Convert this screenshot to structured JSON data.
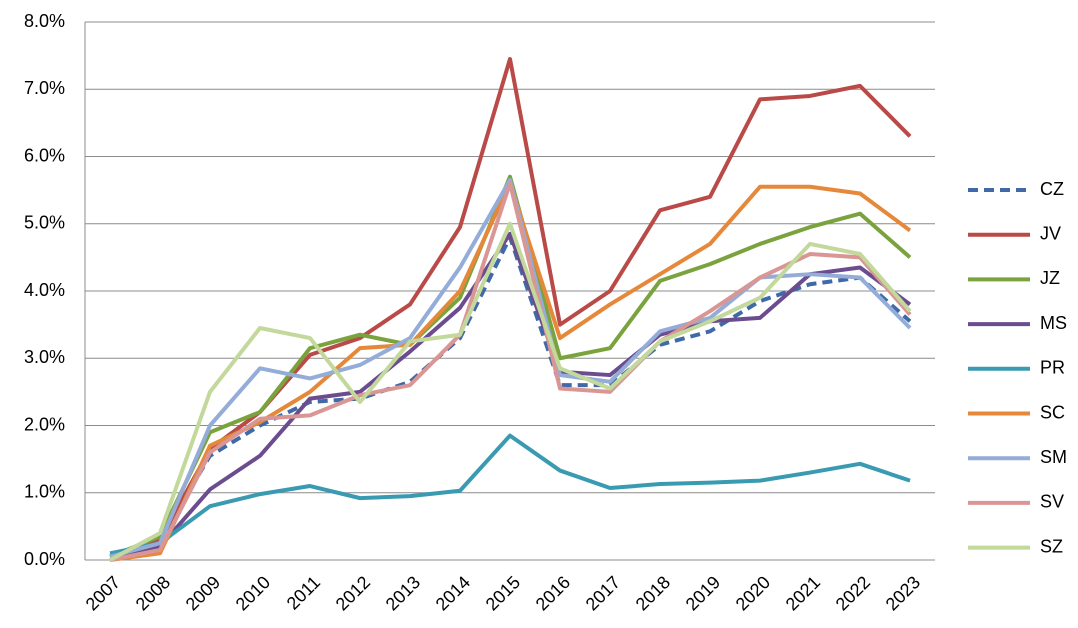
{
  "chart_data": {
    "type": "line",
    "categories": [
      "2007",
      "2008",
      "2009",
      "2010",
      "2011",
      "2012",
      "2013",
      "2014",
      "2015",
      "2016",
      "2017",
      "2018",
      "2019",
      "2020",
      "2021",
      "2022",
      "2023"
    ],
    "ylim": [
      0,
      8
    ],
    "yticks": [
      {
        "value": 0,
        "label": "0.0%"
      },
      {
        "value": 1,
        "label": "1.0%"
      },
      {
        "value": 2,
        "label": "2.0%"
      },
      {
        "value": 3,
        "label": "3.0%"
      },
      {
        "value": 4,
        "label": "4.0%"
      },
      {
        "value": 5,
        "label": "5.0%"
      },
      {
        "value": 6,
        "label": "6.0%"
      },
      {
        "value": 7,
        "label": "7.0%"
      },
      {
        "value": 8,
        "label": "8.0%"
      }
    ],
    "grid": true,
    "legend": "right",
    "series": [
      {
        "name": "CZ",
        "color": "#3f6aa7",
        "dashed": true,
        "values": [
          0.05,
          0.3,
          1.55,
          2.0,
          2.35,
          2.4,
          2.65,
          3.3,
          4.8,
          2.6,
          2.6,
          3.2,
          3.4,
          3.85,
          4.1,
          4.2,
          3.55
        ]
      },
      {
        "name": "JV",
        "color": "#b94a48",
        "values": [
          0.05,
          0.3,
          1.65,
          2.2,
          3.05,
          3.3,
          3.8,
          4.95,
          7.45,
          3.5,
          4.0,
          5.2,
          5.4,
          6.85,
          6.9,
          7.05,
          6.3
        ]
      },
      {
        "name": "JZ",
        "color": "#7aa33e",
        "values": [
          0.05,
          0.35,
          1.9,
          2.2,
          3.15,
          3.35,
          3.2,
          3.9,
          5.7,
          3.0,
          3.15,
          4.15,
          4.4,
          4.7,
          4.95,
          5.15,
          4.5
        ]
      },
      {
        "name": "MS",
        "color": "#6b4d8f",
        "values": [
          0.05,
          0.2,
          1.05,
          1.55,
          2.4,
          2.5,
          3.1,
          3.75,
          4.85,
          2.8,
          2.75,
          3.35,
          3.55,
          3.6,
          4.25,
          4.35,
          3.8
        ]
      },
      {
        "name": "PR",
        "color": "#3a9ab2",
        "values": [
          0.1,
          0.25,
          0.8,
          0.98,
          1.1,
          0.92,
          0.95,
          1.03,
          1.85,
          1.33,
          1.07,
          1.13,
          1.15,
          1.18,
          1.3,
          1.43,
          1.18
        ]
      },
      {
        "name": "SC",
        "color": "#e6883a",
        "values": [
          0.0,
          0.1,
          1.7,
          2.05,
          2.5,
          3.15,
          3.2,
          4.0,
          5.6,
          3.3,
          3.8,
          4.25,
          4.7,
          5.55,
          5.55,
          5.45,
          4.9
        ]
      },
      {
        "name": "SM",
        "color": "#94acd8",
        "values": [
          0.05,
          0.25,
          2.0,
          2.85,
          2.7,
          2.9,
          3.3,
          4.35,
          5.65,
          2.75,
          2.65,
          3.4,
          3.6,
          4.2,
          4.25,
          4.2,
          3.45
        ]
      },
      {
        "name": "SV",
        "color": "#d99694",
        "values": [
          0.0,
          0.15,
          1.6,
          2.1,
          2.15,
          2.45,
          2.6,
          3.35,
          5.6,
          2.55,
          2.5,
          3.25,
          3.7,
          4.2,
          4.55,
          4.5,
          3.65
        ]
      },
      {
        "name": "SZ",
        "color": "#c3d89b",
        "values": [
          0.0,
          0.4,
          2.5,
          3.45,
          3.3,
          2.35,
          3.25,
          3.35,
          5.0,
          2.85,
          2.55,
          3.25,
          3.55,
          3.9,
          4.7,
          4.55,
          3.7
        ]
      }
    ]
  }
}
